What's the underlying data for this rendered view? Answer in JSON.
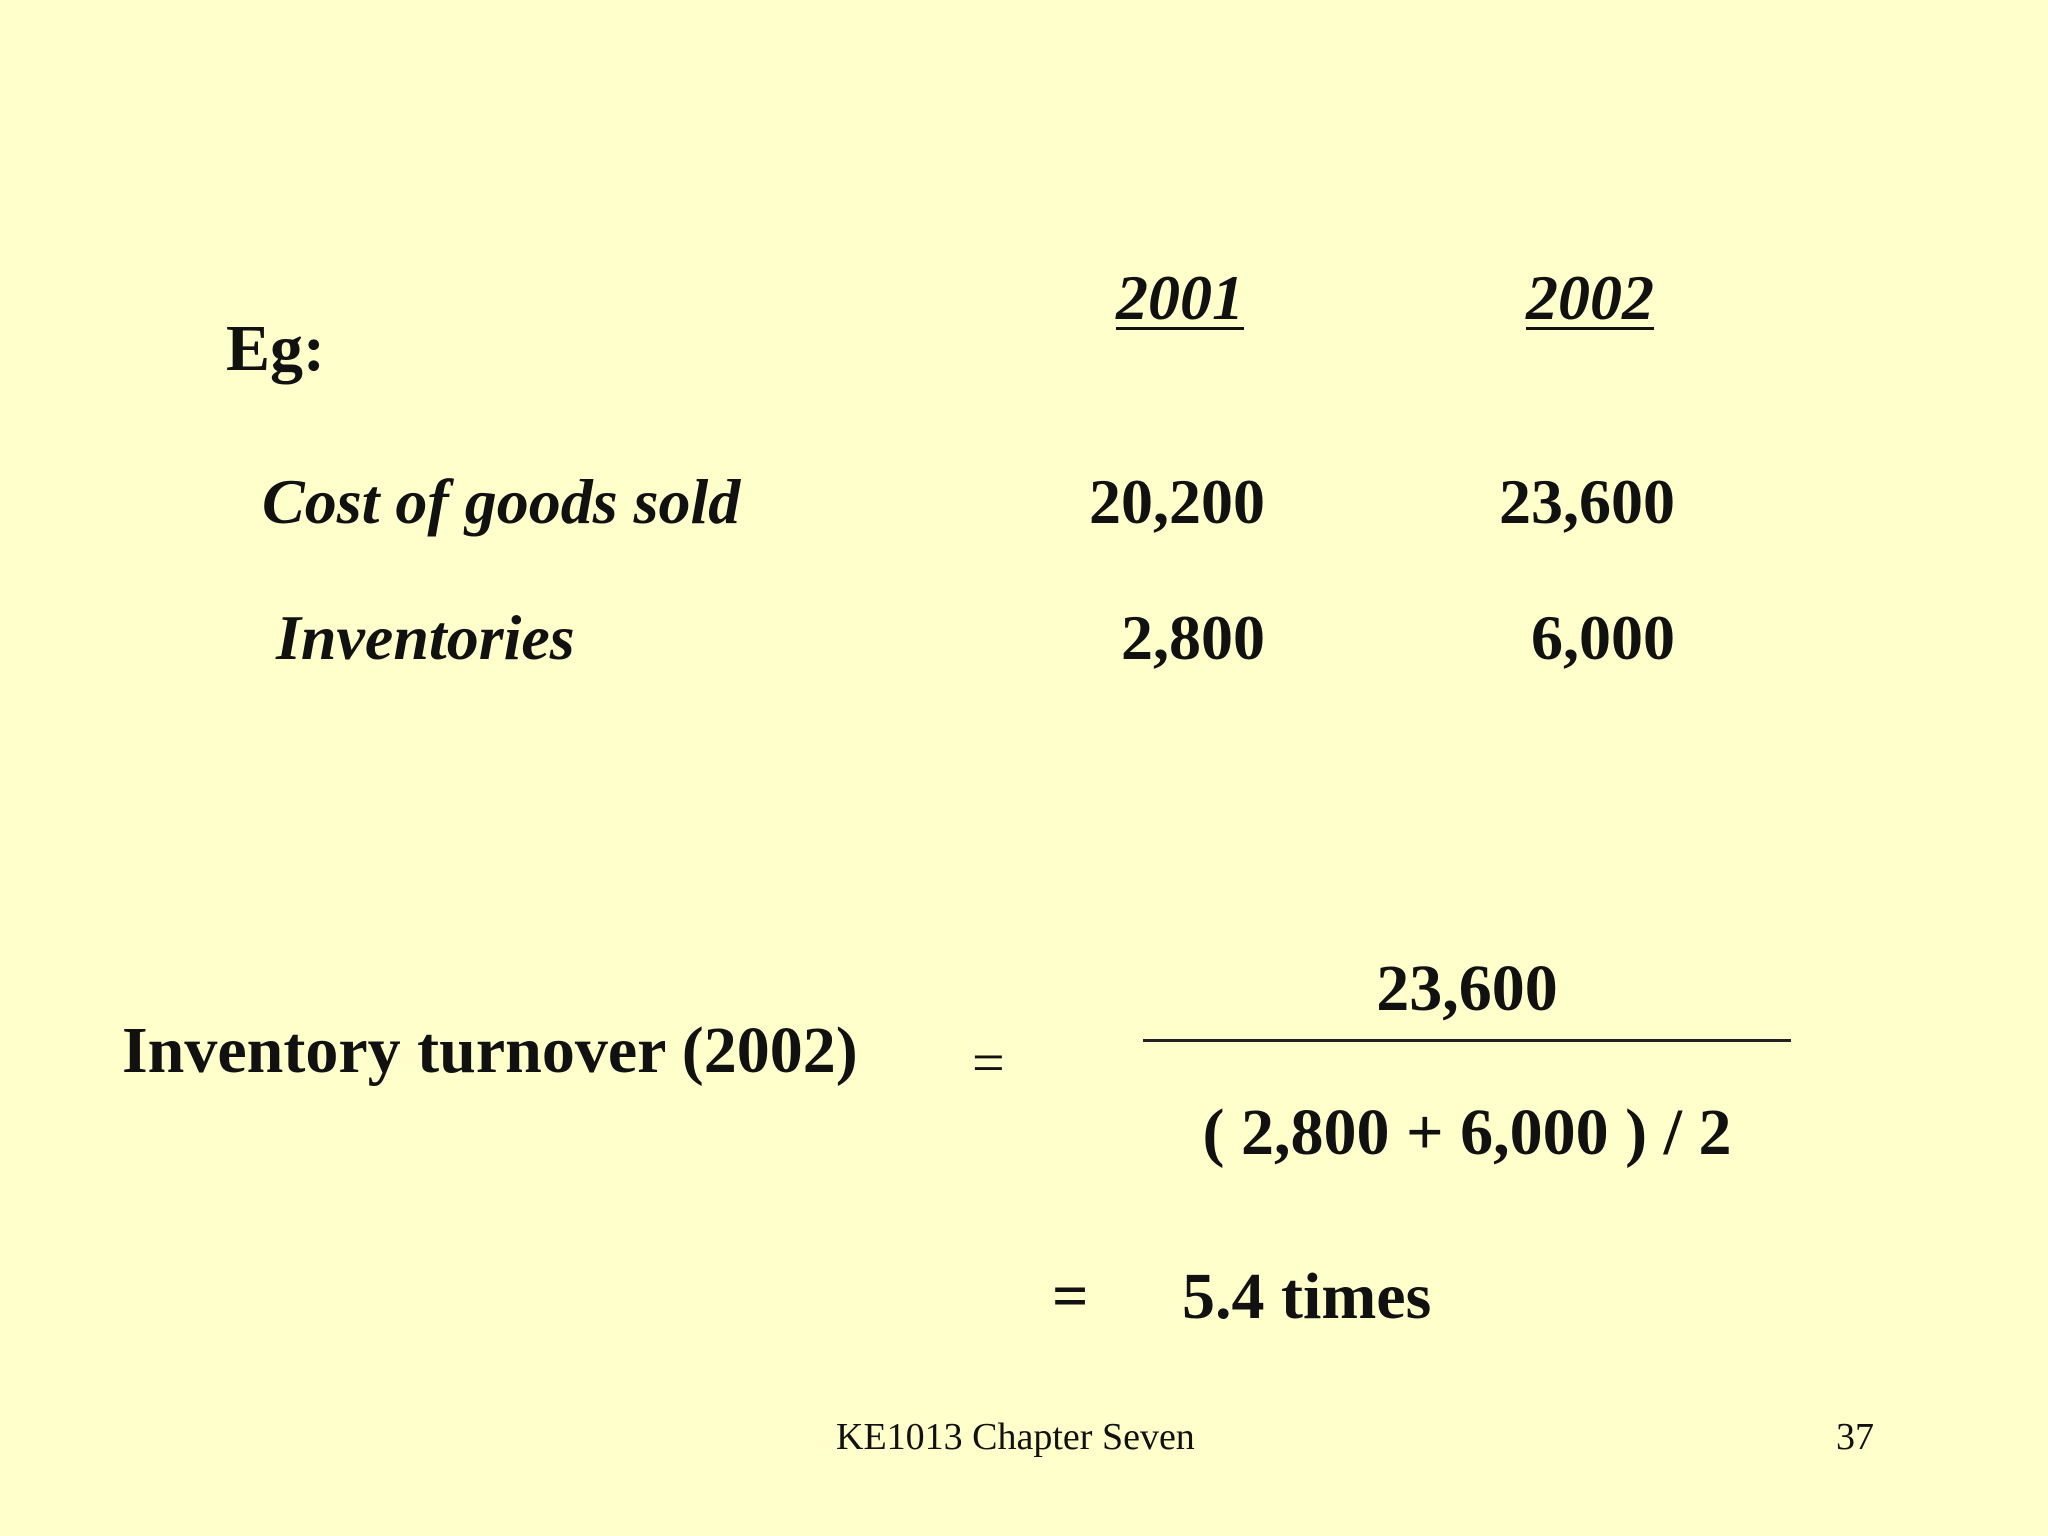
{
  "example_label": "Eg:",
  "table": {
    "headers": [
      "2001",
      "2002"
    ],
    "rows": [
      {
        "label": "Cost of goods sold",
        "values": [
          "20,200",
          "23,600"
        ]
      },
      {
        "label": "Inventories",
        "values": [
          "2,800",
          "6,000"
        ]
      }
    ]
  },
  "formula": {
    "label": "Inventory turnover (2002)",
    "equals": "=",
    "numerator": "23,600",
    "denominator": "( 2,800 + 6,000 ) / 2",
    "result_equals": "=",
    "result": "5.4 times"
  },
  "footer": {
    "text": "KE1013 Chapter Seven",
    "page_number": "37"
  }
}
